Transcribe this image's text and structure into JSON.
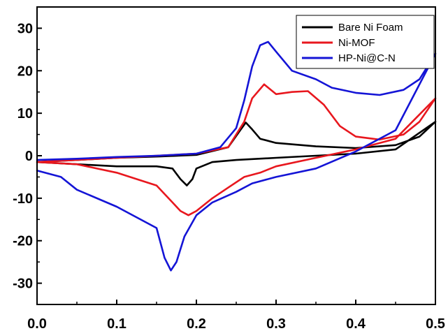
{
  "chart_data": {
    "type": "line",
    "title": "",
    "xlabel": "",
    "ylabel": "",
    "xlim": [
      0.0,
      0.5
    ],
    "ylim": [
      -35,
      35
    ],
    "xticks": [
      0.0,
      0.1,
      0.2,
      0.3,
      0.4,
      0.5
    ],
    "xtick_labels": [
      "0.0",
      "0.1",
      "0.2",
      "0.3",
      "0.4",
      "0.5"
    ],
    "yticks": [
      -30,
      -20,
      -10,
      0,
      10,
      20,
      30
    ],
    "ytick_labels": [
      "-30",
      "-20",
      "-10",
      "0",
      "10",
      "20",
      "30"
    ],
    "grid": false,
    "legend_position": "top-right",
    "series": [
      {
        "name": "Bare Ni Foam",
        "color": "#000000",
        "x": [
          0.0,
          0.05,
          0.1,
          0.15,
          0.2,
          0.24,
          0.255,
          0.262,
          0.27,
          0.28,
          0.3,
          0.35,
          0.4,
          0.45,
          0.48,
          0.5,
          0.45,
          0.4,
          0.35,
          0.3,
          0.25,
          0.22,
          0.2,
          0.195,
          0.188,
          0.18,
          0.17,
          0.15,
          0.1,
          0.05,
          0.0
        ],
        "y": [
          -1.5,
          -1.0,
          -0.5,
          -0.2,
          0.2,
          2.0,
          6.0,
          7.8,
          6.2,
          4.0,
          3.0,
          2.2,
          1.8,
          2.5,
          4.5,
          8.0,
          1.5,
          0.5,
          0.0,
          -0.5,
          -1.0,
          -1.5,
          -3.0,
          -5.5,
          -7.0,
          -5.5,
          -3.0,
          -2.5,
          -2.5,
          -2.0,
          -1.5
        ]
      },
      {
        "name": "Ni-MOF",
        "color": "#e8171e",
        "x": [
          0.0,
          0.05,
          0.1,
          0.15,
          0.2,
          0.24,
          0.26,
          0.27,
          0.285,
          0.3,
          0.32,
          0.34,
          0.36,
          0.38,
          0.4,
          0.43,
          0.46,
          0.48,
          0.5,
          0.45,
          0.4,
          0.35,
          0.3,
          0.28,
          0.26,
          0.24,
          0.22,
          0.2,
          0.19,
          0.18,
          0.17,
          0.15,
          0.1,
          0.05,
          0.0
        ],
        "y": [
          -1.5,
          -1.0,
          -0.5,
          0.0,
          0.5,
          2.0,
          8.0,
          13.5,
          16.8,
          14.5,
          15.0,
          15.2,
          12.0,
          7.0,
          4.5,
          3.8,
          5.0,
          8.0,
          13.5,
          4.0,
          1.5,
          -0.5,
          -2.5,
          -4.0,
          -5.0,
          -7.5,
          -10.0,
          -13.0,
          -14.0,
          -13.0,
          -11.0,
          -7.0,
          -4.0,
          -2.0,
          -1.5
        ]
      },
      {
        "name": "HP-Ni@C-N",
        "color": "#1414d6",
        "x": [
          0.0,
          0.05,
          0.1,
          0.15,
          0.2,
          0.23,
          0.25,
          0.26,
          0.27,
          0.28,
          0.29,
          0.3,
          0.32,
          0.35,
          0.37,
          0.4,
          0.43,
          0.46,
          0.48,
          0.5,
          0.45,
          0.4,
          0.35,
          0.3,
          0.27,
          0.25,
          0.22,
          0.2,
          0.185,
          0.175,
          0.168,
          0.16,
          0.15,
          0.1,
          0.05,
          0.03,
          0.0
        ],
        "y": [
          -1.0,
          -0.7,
          -0.3,
          0.0,
          0.5,
          2.0,
          6.5,
          13.0,
          21.0,
          26.0,
          26.8,
          24.5,
          20.0,
          18.0,
          16.0,
          14.8,
          14.3,
          15.5,
          18.0,
          24.0,
          6.0,
          1.0,
          -3.0,
          -5.0,
          -6.5,
          -8.5,
          -11.0,
          -14.0,
          -19.0,
          -25.0,
          -27.0,
          -24.0,
          -17.0,
          -12.0,
          -8.0,
          -5.0,
          -3.5
        ]
      }
    ]
  }
}
